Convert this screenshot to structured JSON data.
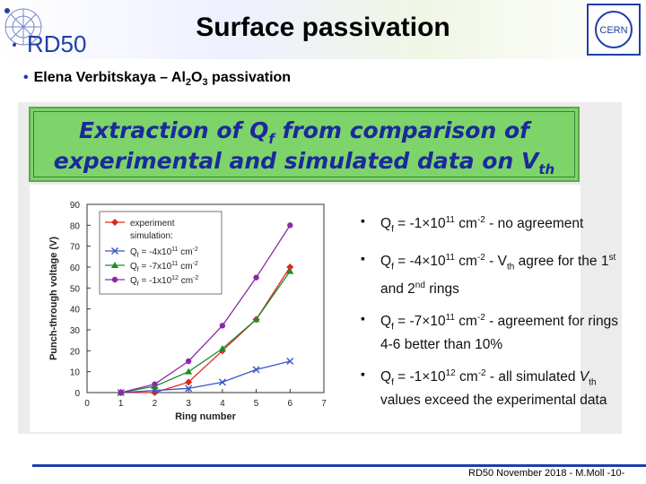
{
  "header": {
    "title": "Surface passivation",
    "logo_left_text": "RD50",
    "logo_right_text": "CERN"
  },
  "bullet": {
    "prefix": "Elena Verbitskaya – Al",
    "sub1": "2",
    "mid": "O",
    "sub2": "3",
    "suffix": " passivation"
  },
  "banner": {
    "line1": "Extraction of Qf from comparison of",
    "line2": "experimental and simulated data on Vth"
  },
  "notes": [
    {
      "a": "Q",
      "a_sub": "f",
      "b": " = -1×10",
      "b_sup": "11",
      "c": " cm",
      "c_sup": "-2",
      "d": " - no agreement"
    },
    {
      "a": "Q",
      "a_sub": "f",
      "b": " = -4×10",
      "b_sup": "11",
      "c": " cm",
      "c_sup": "-2",
      "d": " - V",
      "d_sub": "th",
      "e": " agree for the 1",
      "e_sup": "st",
      "f": " and 2",
      "f_sup": "nd",
      "g": " rings"
    },
    {
      "a": "Q",
      "a_sub": "f",
      "b": " = -7×10",
      "b_sup": "11",
      "c": " cm",
      "c_sup": "-2",
      "d": " - agreement for rings 4-6 better than 10%"
    },
    {
      "a": "Q",
      "a_sub": "f",
      "b": " = -1×10",
      "b_sup": "12",
      "c": " cm",
      "c_sup": "-2",
      "d": " - all simulated ",
      "d2": "V",
      "d2_sub": "th",
      "e": " values exceed the experimental data"
    }
  ],
  "footer": "RD50 November 2018 - M.Moll -10-",
  "colors": {
    "banner_bg": "#7ed36b",
    "banner_text": "#1a2a9a",
    "accent": "#1f3ea8"
  },
  "chart_data": {
    "type": "line",
    "xlabel": "Ring number",
    "ylabel": "Punch-through voltage (V)",
    "xlim": [
      0,
      7
    ],
    "ylim": [
      0,
      90
    ],
    "xticks": [
      0,
      1,
      2,
      3,
      4,
      5,
      6,
      7
    ],
    "yticks": [
      0,
      10,
      20,
      30,
      40,
      50,
      60,
      70,
      80,
      90
    ],
    "legend_title_1": "experiment",
    "legend_title_2": "simulation:",
    "legend_position": "top-left",
    "series": [
      {
        "name": "experiment",
        "color": "#e0261c",
        "marker": "diamond",
        "x": [
          1,
          2,
          3,
          4,
          5,
          6
        ],
        "y": [
          0,
          0,
          5,
          20,
          35,
          60
        ]
      },
      {
        "name": "Qf = -4x10^11 cm^-2",
        "color": "#3a55c9",
        "marker": "x",
        "x": [
          1,
          2,
          3,
          4,
          5,
          6
        ],
        "y": [
          0,
          1,
          2,
          5,
          11,
          15
        ]
      },
      {
        "name": "Qf = -7x10^11 cm^-2",
        "color": "#1f8a2a",
        "marker": "triangle",
        "x": [
          1,
          2,
          3,
          4,
          5,
          6
        ],
        "y": [
          0,
          3,
          10,
          21,
          35,
          58
        ]
      },
      {
        "name": "Qf = -1x10^12 cm^-2",
        "color": "#8a2aa8",
        "marker": "circle",
        "x": [
          1,
          2,
          3,
          4,
          5,
          6
        ],
        "y": [
          0,
          4,
          15,
          32,
          55,
          80
        ]
      }
    ],
    "legend_labels": [
      {
        "pre": "Q",
        "sub": "f",
        "mid": " = -4x10",
        "sup": "11",
        "post": " cm",
        "sup2": "-2"
      },
      {
        "pre": "Q",
        "sub": "f",
        "mid": " = -7x10",
        "sup": "11",
        "post": " cm",
        "sup2": "-2"
      },
      {
        "pre": "Q",
        "sub": "f",
        "mid": " = -1x10",
        "sup": "12",
        "post": " cm",
        "sup2": "-2"
      }
    ]
  }
}
